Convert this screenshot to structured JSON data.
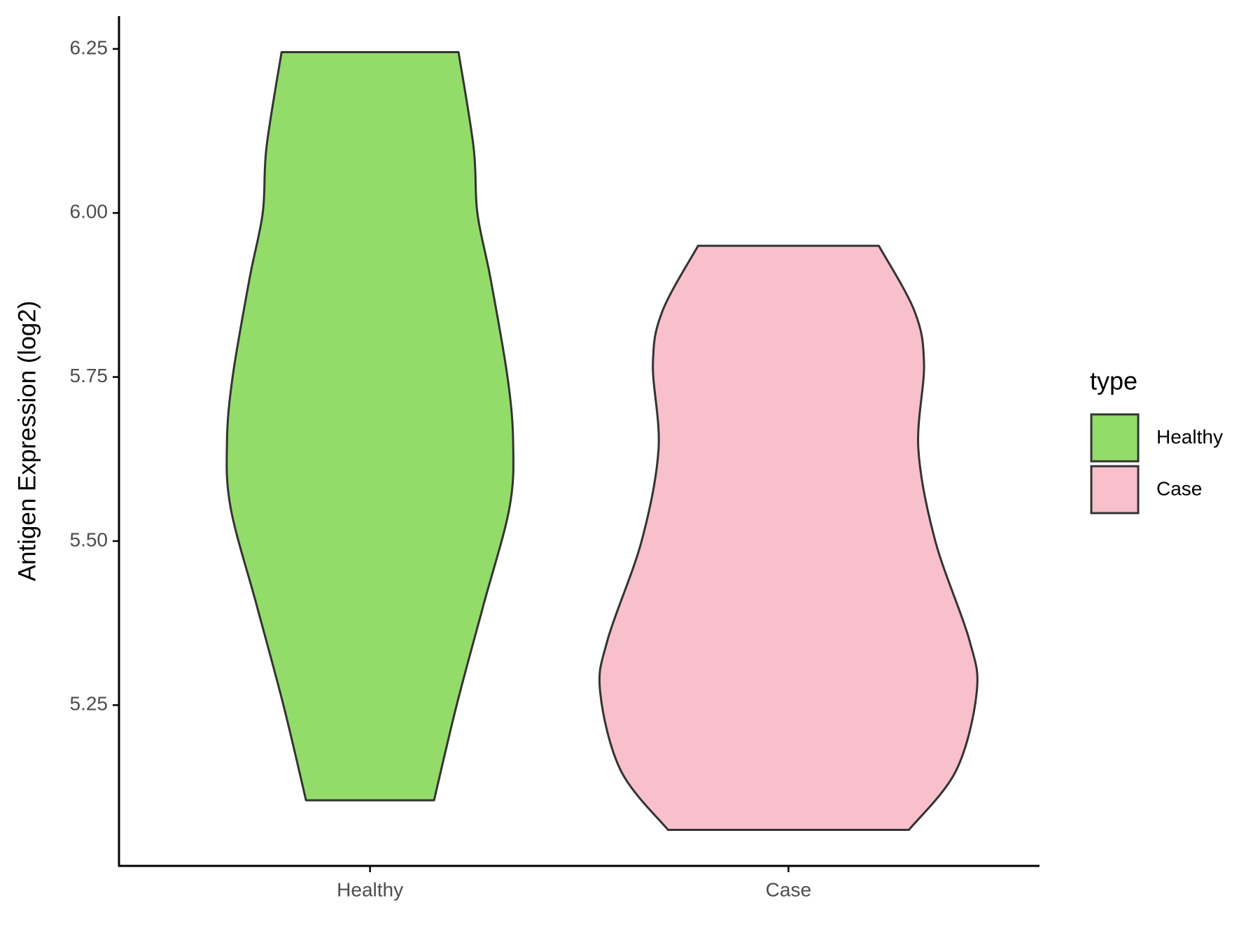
{
  "chart_data": {
    "type": "violin",
    "y_label": "Antigen Expression (log2)",
    "categories": [
      "Healthy",
      "Case"
    ],
    "legend_title": "type",
    "legend_position": "right",
    "ylim": [
      5.005,
      6.3
    ],
    "yticks": [
      {
        "value": 5.25,
        "label": "5.25"
      },
      {
        "value": 5.5,
        "label": "5.50"
      },
      {
        "value": 5.75,
        "label": "5.75"
      },
      {
        "value": 6.0,
        "label": "6.00"
      },
      {
        "value": 6.25,
        "label": "6.25"
      }
    ],
    "series": [
      {
        "name": "Healthy",
        "color": "#93dc6a",
        "y": [
          6.245,
          6.1,
          6.0,
          5.9,
          5.75,
          5.65,
          5.55,
          5.4,
          5.25,
          5.105
        ],
        "density": [
          0.47,
          0.55,
          0.57,
          0.64,
          0.73,
          0.76,
          0.74,
          0.6,
          0.46,
          0.34
        ]
      },
      {
        "name": "Case",
        "color": "#f7c0cb",
        "y": [
          5.95,
          5.85,
          5.77,
          5.64,
          5.5,
          5.35,
          5.27,
          5.15,
          5.06
        ],
        "density": [
          0.48,
          0.67,
          0.72,
          0.69,
          0.78,
          0.96,
          1.0,
          0.89,
          0.64
        ]
      }
    ]
  }
}
